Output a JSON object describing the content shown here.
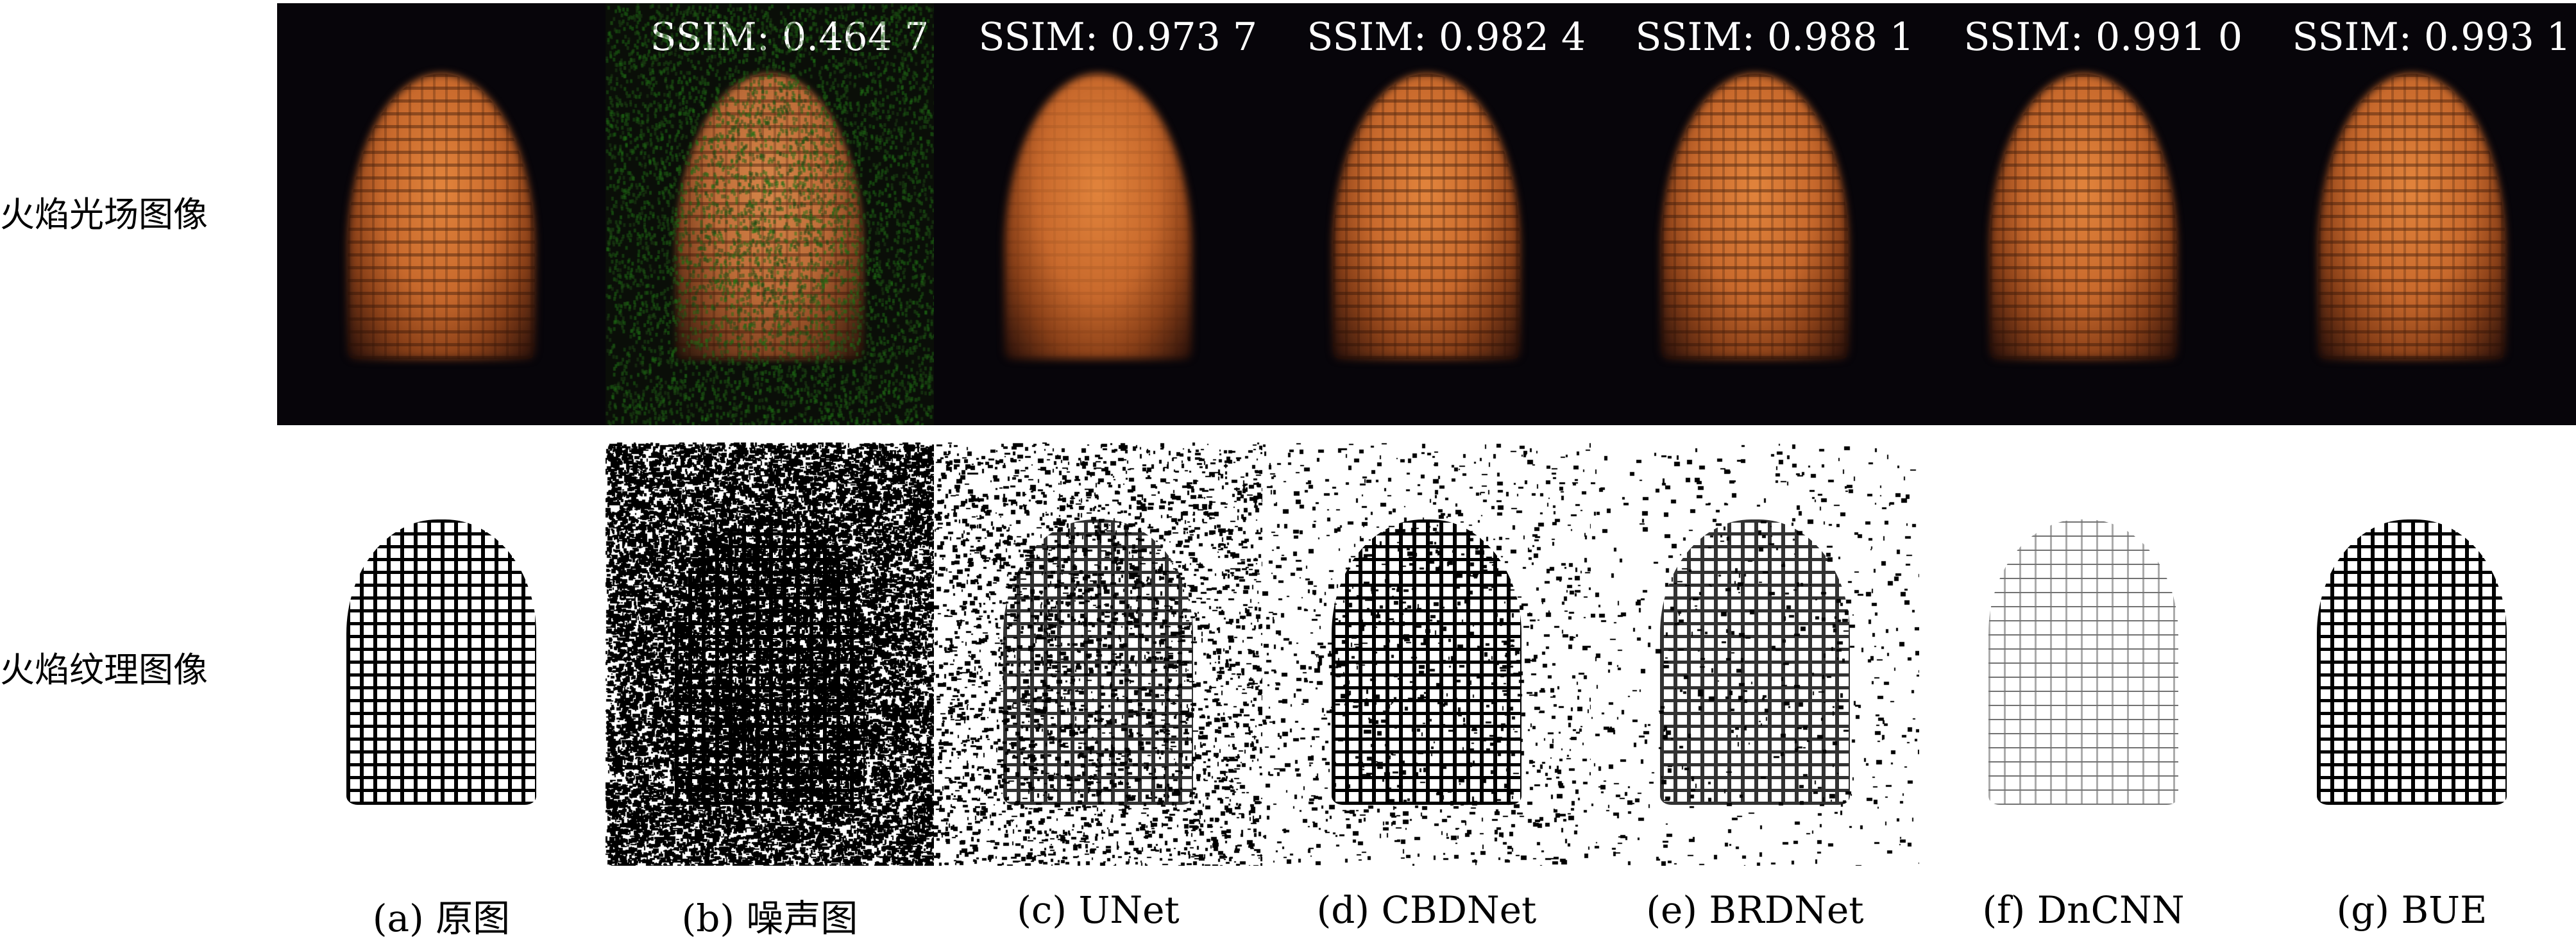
{
  "row_labels": {
    "top": "火焰光场图像",
    "bottom": "火焰纹理图像"
  },
  "panels": [
    {
      "caption": "(a) 原图",
      "ssim": null,
      "noise_level": 0,
      "texture": "full"
    },
    {
      "caption": "(b) 噪声图",
      "ssim": "SSIM: 0.464 7",
      "noise_level": 0.45,
      "texture": "full"
    },
    {
      "caption": "(c) UNet",
      "ssim": "SSIM: 0.973 7",
      "noise_level": 0.08,
      "texture": "mid"
    },
    {
      "caption": "(d) CBDNet",
      "ssim": "SSIM: 0.982 4",
      "noise_level": 0.03,
      "texture": "full"
    },
    {
      "caption": "(e) BRDNet",
      "ssim": "SSIM: 0.988 1",
      "noise_level": 0.015,
      "texture": "mid"
    },
    {
      "caption": "(f) DnCNN",
      "ssim": "SSIM: 0.991 0",
      "noise_level": 0,
      "texture": "sparse"
    },
    {
      "caption": "(g) BUE",
      "ssim": "SSIM: 0.993 1",
      "noise_level": 0,
      "texture": "full"
    }
  ]
}
